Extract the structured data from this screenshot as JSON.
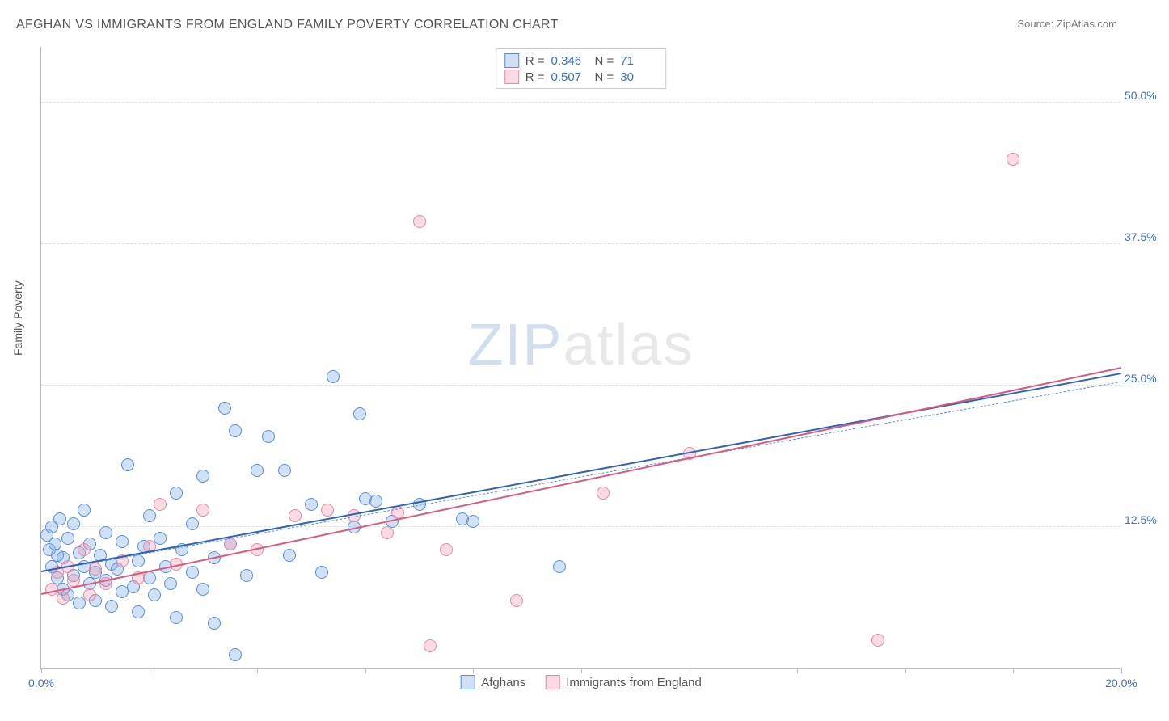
{
  "title": "AFGHAN VS IMMIGRANTS FROM ENGLAND FAMILY POVERTY CORRELATION CHART",
  "source_label": "Source:",
  "source_value": "ZipAtlas.com",
  "ylabel": "Family Poverty",
  "watermark_zip": "ZIP",
  "watermark_atlas": "atlas",
  "chart": {
    "type": "scatter",
    "background_color": "#ffffff",
    "grid_color": "#e0e0e0",
    "axis_color": "#bbbbbb",
    "text_color": "#555555",
    "tick_label_color": "#3b6fc9",
    "xlim": [
      0,
      20
    ],
    "ylim": [
      0,
      55
    ],
    "xtick_positions": [
      0,
      2,
      4,
      6,
      8,
      10,
      12,
      14,
      16,
      18,
      20
    ],
    "xtick_labels": {
      "0": "0.0%",
      "20": "20.0%"
    },
    "ytick_positions": [
      12.5,
      25.0,
      37.5,
      50.0
    ],
    "ytick_labels": [
      "12.5%",
      "25.0%",
      "37.5%",
      "50.0%"
    ],
    "marker_radius": 8,
    "marker_border_width": 1.5,
    "series": [
      {
        "name": "Afghans",
        "fill_color": "rgba(120,170,230,0.35)",
        "border_color": "#5a8fd6",
        "line_color": "#2e63b8",
        "r_value": "0.346",
        "n_value": "71",
        "trend": {
          "x1": 0,
          "y1": 8.5,
          "x2": 20,
          "y2": 26.0
        },
        "trend_dashed": {
          "x1": 0,
          "y1": 8.5,
          "x2": 20,
          "y2": 25.3
        },
        "points": [
          [
            0.1,
            11.8
          ],
          [
            0.15,
            10.5
          ],
          [
            0.2,
            12.5
          ],
          [
            0.2,
            9.0
          ],
          [
            0.25,
            11.0
          ],
          [
            0.3,
            8.0
          ],
          [
            0.3,
            10.0
          ],
          [
            0.35,
            13.2
          ],
          [
            0.4,
            9.8
          ],
          [
            0.4,
            7.0
          ],
          [
            0.5,
            11.5
          ],
          [
            0.5,
            6.5
          ],
          [
            0.6,
            12.8
          ],
          [
            0.6,
            8.2
          ],
          [
            0.7,
            10.2
          ],
          [
            0.7,
            5.8
          ],
          [
            0.8,
            9.0
          ],
          [
            0.8,
            14.0
          ],
          [
            0.9,
            7.5
          ],
          [
            0.9,
            11.0
          ],
          [
            1.0,
            8.5
          ],
          [
            1.0,
            6.0
          ],
          [
            1.1,
            10.0
          ],
          [
            1.2,
            12.0
          ],
          [
            1.2,
            7.8
          ],
          [
            1.3,
            9.2
          ],
          [
            1.3,
            5.5
          ],
          [
            1.4,
            8.8
          ],
          [
            1.5,
            11.2
          ],
          [
            1.5,
            6.8
          ],
          [
            1.6,
            18.0
          ],
          [
            1.7,
            7.2
          ],
          [
            1.8,
            9.5
          ],
          [
            1.8,
            5.0
          ],
          [
            1.9,
            10.8
          ],
          [
            2.0,
            8.0
          ],
          [
            2.0,
            13.5
          ],
          [
            2.1,
            6.5
          ],
          [
            2.2,
            11.5
          ],
          [
            2.3,
            9.0
          ],
          [
            2.4,
            7.5
          ],
          [
            2.5,
            15.5
          ],
          [
            2.5,
            4.5
          ],
          [
            2.6,
            10.5
          ],
          [
            2.8,
            8.5
          ],
          [
            2.8,
            12.8
          ],
          [
            3.0,
            7.0
          ],
          [
            3.0,
            17.0
          ],
          [
            3.2,
            9.8
          ],
          [
            3.2,
            4.0
          ],
          [
            3.4,
            23.0
          ],
          [
            3.5,
            11.0
          ],
          [
            3.6,
            21.0
          ],
          [
            3.8,
            8.2
          ],
          [
            4.0,
            17.5
          ],
          [
            4.2,
            20.5
          ],
          [
            4.5,
            17.5
          ],
          [
            4.6,
            10.0
          ],
          [
            5.0,
            14.5
          ],
          [
            5.2,
            8.5
          ],
          [
            5.4,
            25.8
          ],
          [
            5.8,
            12.5
          ],
          [
            5.9,
            22.5
          ],
          [
            6.0,
            15.0
          ],
          [
            6.2,
            14.8
          ],
          [
            6.5,
            13.0
          ],
          [
            7.0,
            14.5
          ],
          [
            7.8,
            13.2
          ],
          [
            8.0,
            13.0
          ],
          [
            9.6,
            9.0
          ],
          [
            3.6,
            1.2
          ]
        ]
      },
      {
        "name": "Immigrants from England",
        "fill_color": "rgba(240,150,175,0.35)",
        "border_color": "#e68aa3",
        "line_color": "#d85a7e",
        "r_value": "0.507",
        "n_value": "30",
        "trend": {
          "x1": 0,
          "y1": 6.5,
          "x2": 20,
          "y2": 26.5
        },
        "points": [
          [
            0.2,
            7.0
          ],
          [
            0.3,
            8.5
          ],
          [
            0.4,
            6.2
          ],
          [
            0.5,
            9.0
          ],
          [
            0.6,
            7.8
          ],
          [
            0.8,
            10.5
          ],
          [
            0.9,
            6.5
          ],
          [
            1.0,
            8.8
          ],
          [
            1.2,
            7.5
          ],
          [
            1.5,
            9.5
          ],
          [
            1.8,
            8.0
          ],
          [
            2.0,
            10.8
          ],
          [
            2.2,
            14.5
          ],
          [
            2.5,
            9.2
          ],
          [
            3.0,
            14.0
          ],
          [
            3.5,
            11.0
          ],
          [
            4.0,
            10.5
          ],
          [
            4.7,
            13.5
          ],
          [
            5.3,
            14.0
          ],
          [
            5.8,
            13.5
          ],
          [
            6.4,
            12.0
          ],
          [
            6.6,
            13.8
          ],
          [
            7.0,
            39.5
          ],
          [
            7.2,
            2.0
          ],
          [
            7.5,
            10.5
          ],
          [
            8.8,
            6.0
          ],
          [
            10.4,
            15.5
          ],
          [
            12.0,
            19.0
          ],
          [
            15.5,
            2.5
          ],
          [
            18.0,
            45.0
          ]
        ]
      }
    ],
    "legend_bottom": [
      {
        "label": "Afghans",
        "series_index": 0
      },
      {
        "label": "Immigrants from England",
        "series_index": 1
      }
    ],
    "legend_top_r_label": "R =",
    "legend_top_n_label": "N ="
  }
}
